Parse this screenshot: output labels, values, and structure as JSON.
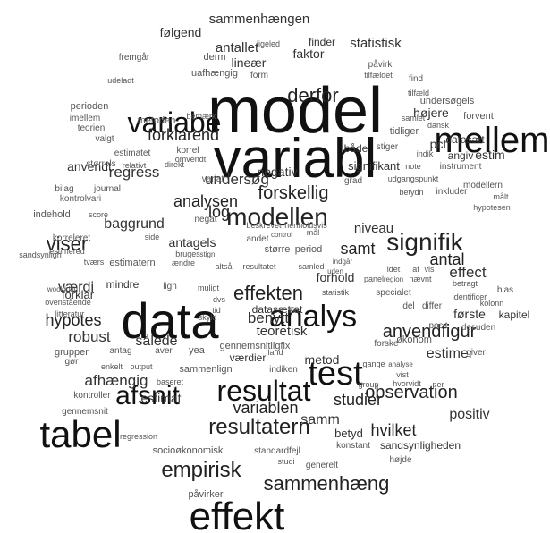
{
  "words": [
    "model",
    "variabl",
    "data",
    "tabel",
    "effekt",
    "mellem",
    "analys",
    "test",
    "resultat",
    "variabe",
    "modellen",
    "signifik",
    "afsnit",
    "empirisk",
    "sammenhæng",
    "resultatern",
    "effekten",
    "derfor",
    "viser",
    "anvendfigur",
    "observation",
    "forskellig",
    "forklarend",
    "hypotes",
    "hvilket",
    "variablen",
    "studier",
    "antal",
    "effect",
    "estimer",
    "positiv",
    "analysen",
    "regress",
    "log",
    "samt",
    "undersøg",
    "robust",
    "sålede",
    "benytt",
    "afhængig",
    "estimat",
    "samm",
    "baggrund",
    "antallet",
    "sammenhængen",
    "statistisk",
    "faktor",
    "værdi",
    "teoretisk",
    "metod",
    "forhold",
    "antagels",
    "følgend",
    "lineær",
    "finder",
    "højere",
    "pct",
    "estim",
    "angiv",
    "datasæt",
    "både",
    "negativ",
    "signifikant",
    "niveau",
    "anvendt",
    "forklar",
    "mindre",
    "betyd",
    "datasættet",
    "værdier",
    "gennemsnitligfix",
    "sammenlign",
    "indiken",
    "økonom",
    "forske",
    "første",
    "kapitel",
    "socioøkonomisk",
    "standardfejl",
    "sandsynligheden",
    "konstant",
    "højde",
    "generelt",
    "studi",
    "påvirker",
    "regression",
    "gennemsnit",
    "kontroller",
    "grupper",
    "gør",
    "enkelt",
    "output",
    "fremgår",
    "ligeled",
    "derm",
    "form",
    "uafhængig",
    "udeladt",
    "perioden",
    "imellem",
    "teorien",
    "valgt",
    "metoden",
    "bemærk",
    "påvirk",
    "tilfældet",
    "find",
    "tilfæld",
    "undersøgels",
    "samlet",
    "forvent",
    "tidliger",
    "dansk",
    "stiger",
    "indik",
    "note",
    "instrument",
    "udgangspunkt",
    "modellern",
    "betydn",
    "inkluder",
    "målt",
    "hypotesen",
    "grad",
    "estimatet",
    "korrel",
    "omvendt",
    "størrels",
    "relativt",
    "direkt",
    "variat",
    "bilag",
    "journal",
    "kontrolvari",
    "indehold",
    "score",
    "negat",
    "korreleret",
    "side",
    "estimered",
    "tværs",
    "estimatern",
    "sandsynligh",
    "beskrevet",
    "henholdsvis",
    "control",
    "mål",
    "andet",
    "større",
    "period",
    "stign",
    "bruges",
    "ændre",
    "altså",
    "resultatet",
    "samled",
    "uden",
    "indgår",
    "idet",
    "af",
    "vis",
    "betragt",
    "identificer",
    "bias",
    "panel",
    "region",
    "nævnt",
    "specialet",
    "statistik",
    "muligt",
    "dvs",
    "tid",
    "skyld",
    "kild",
    "del",
    "differ",
    "posit",
    "desuden",
    "kolonn",
    "gange",
    "analyse",
    "giver",
    "vist",
    "group",
    "hvorvidt",
    "per",
    "wooldridg",
    "ovenstående",
    "litteratur",
    "lign",
    "antag",
    "aver",
    "land",
    "baseret",
    "yea"
  ]
}
